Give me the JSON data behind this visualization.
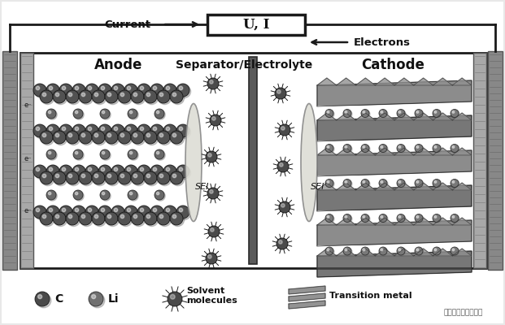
{
  "bg_color": "#e8e8e8",
  "box_bg": "#ffffff",
  "box_border": "#1a1a1a",
  "current_label": "Current",
  "ui_label": "U, I",
  "electrons_label": "Electrons",
  "anode_label": "Anode",
  "separator_label": "Separator/Electrolyte",
  "cathode_label": "Cathode",
  "sei_label": "SEI",
  "legend_c": "C",
  "legend_li": "Li",
  "legend_solvent": "Solvent\nmolecules",
  "legend_transition": "Transition metal",
  "watermark": "新能源汿中科普内参",
  "cc_color": "#a0a0a0",
  "cc_outer": "#888888",
  "graphite_color": "#555555",
  "graphite_edge": "#1a1a1a",
  "li_color": "#777777",
  "li_edge": "#333333",
  "sei_face": "#ddddd0",
  "sei_edge": "#999999",
  "sep_color": "#606060",
  "solvent_color": "#3a3a3a",
  "cathode_layer_dark": "#666666",
  "cathode_layer_light": "#b0b0b0",
  "wire_color": "#1a1a1a",
  "label_color": "#111111"
}
